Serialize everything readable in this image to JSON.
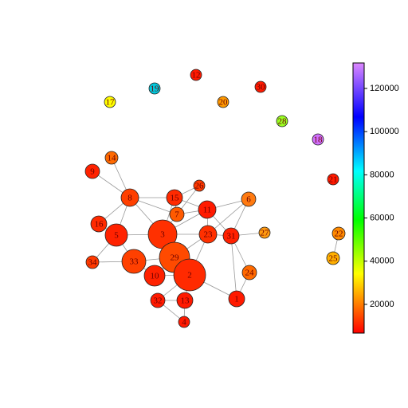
{
  "nodes": [
    {
      "label": "17",
      "color": "#ffff00"
    },
    {
      "label": "19",
      "color": "#00c8dc"
    },
    {
      "label": "12",
      "color": "#ff1a00"
    },
    {
      "label": "20",
      "color": "#ff9a00"
    },
    {
      "label": "30",
      "color": "#ff1a00"
    },
    {
      "label": "28",
      "color": "#99ff22"
    },
    {
      "label": "18",
      "color": "#d070ff"
    },
    {
      "label": "21",
      "color": "#ff1a00"
    },
    {
      "label": "14",
      "color": "#ff6a00"
    },
    {
      "label": "9",
      "color": "#ff2200"
    },
    {
      "label": "8",
      "color": "#ff4000"
    },
    {
      "label": "15",
      "color": "#ff2a00"
    },
    {
      "label": "26",
      "color": "#ff3a00"
    },
    {
      "label": "6",
      "color": "#ff7a10"
    },
    {
      "label": "7",
      "color": "#ff5a00"
    },
    {
      "label": "11",
      "color": "#ff1a00"
    },
    {
      "label": "16",
      "color": "#ff2a00"
    },
    {
      "label": "5",
      "color": "#ff2200"
    },
    {
      "label": "3",
      "color": "#ff3000"
    },
    {
      "label": "23",
      "color": "#ff3000"
    },
    {
      "label": "31",
      "color": "#ff2000"
    },
    {
      "label": "27",
      "color": "#ff9a10"
    },
    {
      "label": "34",
      "color": "#ff3a00"
    },
    {
      "label": "33",
      "color": "#ff4000"
    },
    {
      "label": "29",
      "color": "#ff4a00"
    },
    {
      "label": "10",
      "color": "#ff2200"
    },
    {
      "label": "2",
      "color": "#ff2a00"
    },
    {
      "label": "24",
      "color": "#ff6a00"
    },
    {
      "label": "22",
      "color": "#ff8a00"
    },
    {
      "label": "25",
      "color": "#ffb000"
    },
    {
      "label": "32",
      "color": "#ff1a00"
    },
    {
      "label": "13",
      "color": "#ff1a00"
    },
    {
      "label": "1",
      "color": "#ff1a00"
    },
    {
      "label": "4",
      "color": "#ff1a00"
    }
  ],
  "colorbar": {
    "lim": [
      6700,
      131800
    ],
    "ticks": [
      20000,
      40000,
      60000,
      80000,
      100000,
      120000
    ]
  }
}
